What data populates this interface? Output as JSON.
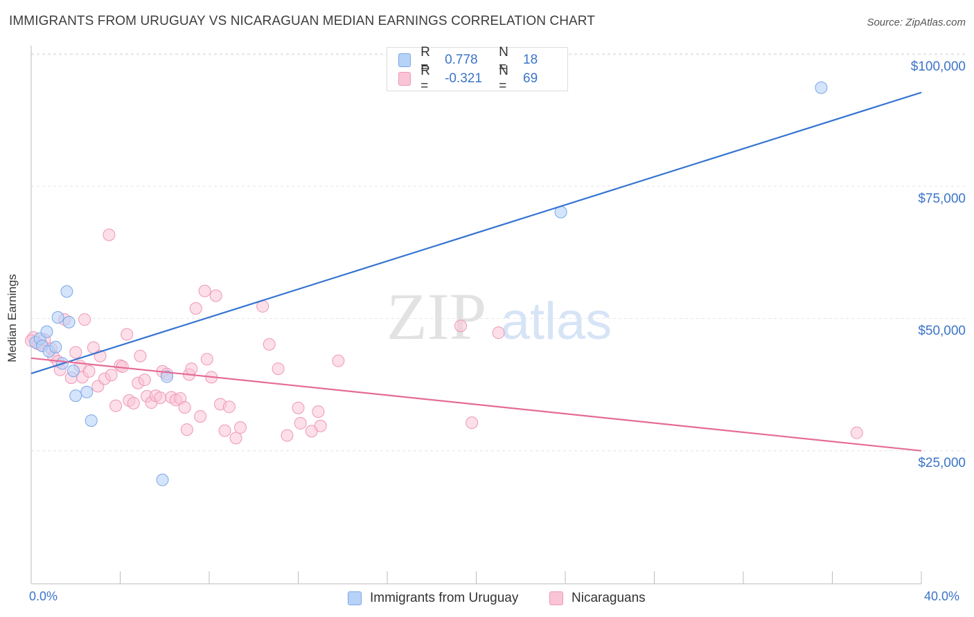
{
  "header": {
    "title": "IMMIGRANTS FROM URUGUAY VS NICARAGUAN MEDIAN EARNINGS CORRELATION CHART",
    "source": "Source: ZipAtlas.com"
  },
  "watermark": {
    "zip": "ZIP",
    "atlas": "atlas"
  },
  "legend_top": [
    {
      "r_label": "R =",
      "r_value": "0.778",
      "n_label": "N =",
      "n_value": "18"
    },
    {
      "r_label": "R =",
      "r_value": "-0.321",
      "n_label": "N =",
      "n_value": "69"
    }
  ],
  "legend_bottom": [
    {
      "label": "Immigrants from Uruguay"
    },
    {
      "label": "Nicaraguans"
    }
  ],
  "axes": {
    "ylabel": "Median Earnings",
    "x_min_label": "0.0%",
    "x_max_label": "40.0%",
    "y_ticks": [
      "$100,000",
      "$75,000",
      "$50,000",
      "$25,000"
    ]
  },
  "colors": {
    "blue_fill": "#b7d2f7",
    "blue_stroke": "#7aa6e6",
    "blue_line": "#3474d1",
    "pink_fill": "#f9c5d6",
    "pink_stroke": "#ee97b6",
    "pink_line": "#e56a97",
    "axis_text": "#3b73c9"
  },
  "chart_data": {
    "type": "scatter",
    "title": "IMMIGRANTS FROM URUGUAY VS NICARAGUAN MEDIAN EARNINGS CORRELATION CHART",
    "xlabel": "",
    "ylabel": "Median Earnings",
    "xlim": [
      0,
      40
    ],
    "ylim": [
      0,
      105000
    ],
    "x_unit": "%",
    "grid": true,
    "legend_placement": "top-center",
    "series": [
      {
        "name": "Immigrants from Uruguay",
        "color": "#7aa6e6",
        "r": 0.778,
        "n": 18,
        "trendline": {
          "x": [
            0,
            40
          ],
          "y": [
            39600,
            92700
          ]
        },
        "points": [
          {
            "x": 0.2,
            "y": 45500
          },
          {
            "x": 0.4,
            "y": 46200
          },
          {
            "x": 0.5,
            "y": 44800
          },
          {
            "x": 0.7,
            "y": 47500
          },
          {
            "x": 0.8,
            "y": 43800
          },
          {
            "x": 1.1,
            "y": 44600
          },
          {
            "x": 1.2,
            "y": 50200
          },
          {
            "x": 1.4,
            "y": 41500
          },
          {
            "x": 1.6,
            "y": 55100
          },
          {
            "x": 1.7,
            "y": 49300
          },
          {
            "x": 1.9,
            "y": 40100
          },
          {
            "x": 2.0,
            "y": 35400
          },
          {
            "x": 2.5,
            "y": 36100
          },
          {
            "x": 2.7,
            "y": 30700
          },
          {
            "x": 6.1,
            "y": 39000
          },
          {
            "x": 5.9,
            "y": 19500
          },
          {
            "x": 23.8,
            "y": 70100
          },
          {
            "x": 35.5,
            "y": 93600
          }
        ]
      },
      {
        "name": "Nicaraguans",
        "color": "#ee97b6",
        "r": -0.321,
        "n": 69,
        "trendline": {
          "x": [
            0,
            40
          ],
          "y": [
            42500,
            25000
          ]
        },
        "points": [
          {
            "x": 0.1,
            "y": 46400
          },
          {
            "x": 0.3,
            "y": 45200
          },
          {
            "x": 0.5,
            "y": 44900
          },
          {
            "x": 0.6,
            "y": 46000
          },
          {
            "x": 0.9,
            "y": 44300
          },
          {
            "x": 1.0,
            "y": 42800
          },
          {
            "x": 1.2,
            "y": 41900
          },
          {
            "x": 1.3,
            "y": 40300
          },
          {
            "x": 1.5,
            "y": 49800
          },
          {
            "x": 1.8,
            "y": 38800
          },
          {
            "x": 2.0,
            "y": 43600
          },
          {
            "x": 2.2,
            "y": 41000
          },
          {
            "x": 2.3,
            "y": 38900
          },
          {
            "x": 2.4,
            "y": 49800
          },
          {
            "x": 2.6,
            "y": 40000
          },
          {
            "x": 2.8,
            "y": 44500
          },
          {
            "x": 3.0,
            "y": 37200
          },
          {
            "x": 3.1,
            "y": 42900
          },
          {
            "x": 3.3,
            "y": 38600
          },
          {
            "x": 3.5,
            "y": 65800
          },
          {
            "x": 3.6,
            "y": 39300
          },
          {
            "x": 3.8,
            "y": 33500
          },
          {
            "x": 4.0,
            "y": 41100
          },
          {
            "x": 4.1,
            "y": 40900
          },
          {
            "x": 4.3,
            "y": 47000
          },
          {
            "x": 4.4,
            "y": 34500
          },
          {
            "x": 4.6,
            "y": 34000
          },
          {
            "x": 4.8,
            "y": 37800
          },
          {
            "x": 4.9,
            "y": 42900
          },
          {
            "x": 5.1,
            "y": 38400
          },
          {
            "x": 5.2,
            "y": 35300
          },
          {
            "x": 5.4,
            "y": 34100
          },
          {
            "x": 5.6,
            "y": 35400
          },
          {
            "x": 5.8,
            "y": 35000
          },
          {
            "x": 5.9,
            "y": 40000
          },
          {
            "x": 6.1,
            "y": 39500
          },
          {
            "x": 6.3,
            "y": 35100
          },
          {
            "x": 6.5,
            "y": 34600
          },
          {
            "x": 6.7,
            "y": 34900
          },
          {
            "x": 6.9,
            "y": 33200
          },
          {
            "x": 7.0,
            "y": 29000
          },
          {
            "x": 7.1,
            "y": 39400
          },
          {
            "x": 7.2,
            "y": 40500
          },
          {
            "x": 7.4,
            "y": 51900
          },
          {
            "x": 7.6,
            "y": 31500
          },
          {
            "x": 7.8,
            "y": 55200
          },
          {
            "x": 7.9,
            "y": 42300
          },
          {
            "x": 8.1,
            "y": 38900
          },
          {
            "x": 8.3,
            "y": 54300
          },
          {
            "x": 8.5,
            "y": 33800
          },
          {
            "x": 8.7,
            "y": 28800
          },
          {
            "x": 8.9,
            "y": 33300
          },
          {
            "x": 9.2,
            "y": 27400
          },
          {
            "x": 9.4,
            "y": 29400
          },
          {
            "x": 10.4,
            "y": 52300
          },
          {
            "x": 10.7,
            "y": 45100
          },
          {
            "x": 11.1,
            "y": 40500
          },
          {
            "x": 11.5,
            "y": 27900
          },
          {
            "x": 12.0,
            "y": 33100
          },
          {
            "x": 12.1,
            "y": 30200
          },
          {
            "x": 12.6,
            "y": 28700
          },
          {
            "x": 12.9,
            "y": 32400
          },
          {
            "x": 13.0,
            "y": 29700
          },
          {
            "x": 13.8,
            "y": 42000
          },
          {
            "x": 19.3,
            "y": 48600
          },
          {
            "x": 19.8,
            "y": 30300
          },
          {
            "x": 21.0,
            "y": 47300
          },
          {
            "x": 37.1,
            "y": 28400
          },
          {
            "x": 0.0,
            "y": 45800
          }
        ]
      }
    ]
  }
}
